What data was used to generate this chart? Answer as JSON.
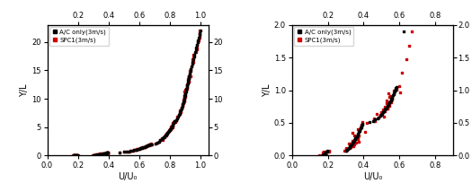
{
  "left_plot": {
    "xlabel": "U/U₀",
    "ylabel": "Y/L",
    "xlim": [
      0,
      1.05
    ],
    "ylim": [
      0,
      23
    ],
    "xticks_bottom": [
      0,
      0.2,
      0.4,
      0.6,
      0.8,
      1.0
    ],
    "xticks_top": [
      0.2,
      0.4,
      0.6,
      0.8,
      1.0
    ],
    "yticks_left": [
      0,
      5,
      10,
      15,
      20
    ],
    "yticks_right": [
      0,
      5,
      10,
      15,
      20
    ],
    "legend": [
      "A/C only(3m/s)",
      "SPC1(3m/s)"
    ],
    "ac_color": "#000000",
    "spc_color": "#cc0000",
    "marker": "s",
    "markersize": 1.8
  },
  "right_plot": {
    "xlabel": "U/U₀",
    "ylabel": "Y/L",
    "xlim": [
      0,
      0.9
    ],
    "ylim": [
      0,
      2.0
    ],
    "xticks_bottom": [
      0,
      0.2,
      0.4,
      0.6,
      0.8
    ],
    "xticks_top": [
      0.2,
      0.4,
      0.6,
      0.8
    ],
    "yticks_left": [
      0,
      0.5,
      1.0,
      1.5,
      2.0
    ],
    "yticks_right": [
      0,
      0.5,
      1.0,
      1.5,
      2.0
    ],
    "legend": [
      "A/C only(3m/s)",
      "SPC1(3m/s)"
    ],
    "ac_color": "#000000",
    "spc_color": "#cc0000",
    "marker": "s",
    "markersize": 1.8
  }
}
